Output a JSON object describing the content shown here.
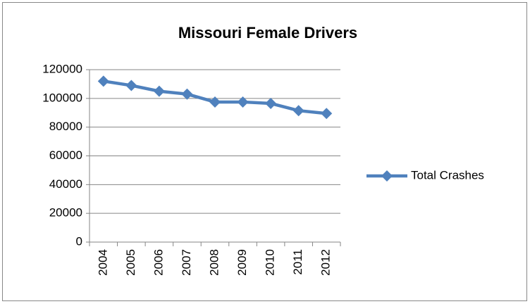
{
  "chart_data": {
    "type": "line",
    "title": "Missouri Female Drivers",
    "categories": [
      "2004",
      "2005",
      "2006",
      "2007",
      "2008",
      "2009",
      "2010",
      "2011",
      "2012"
    ],
    "series": [
      {
        "name": "Total Crashes",
        "color": "#4f81bd",
        "values": [
          112000,
          109000,
          105000,
          103000,
          97500,
          97500,
          96500,
          91500,
          89500
        ]
      }
    ],
    "ylim": [
      0,
      120000
    ],
    "yticks": [
      0,
      20000,
      40000,
      60000,
      80000,
      100000,
      120000
    ],
    "grid": true,
    "legend": "right"
  }
}
